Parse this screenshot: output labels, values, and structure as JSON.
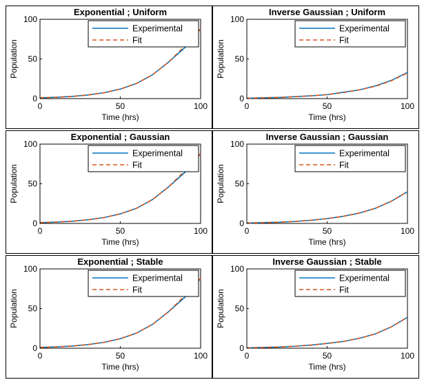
{
  "colors": {
    "experimental": "#0072BD",
    "fit": "#D95319",
    "axis": "#000000",
    "frame": "#000000"
  },
  "chart_data": [
    {
      "type": "line",
      "title": "Exponential ; Uniform",
      "xlabel": "Time (hrs)",
      "ylabel": "Population",
      "xlim": [
        0,
        100
      ],
      "ylim": [
        0,
        100
      ],
      "xticks": [
        "0",
        "50",
        "100"
      ],
      "yticks": [
        "0",
        "50",
        "100"
      ],
      "legend": {
        "position": "top-right",
        "entries": [
          "Experimental",
          "Fit"
        ]
      },
      "x": [
        0,
        10,
        20,
        30,
        40,
        50,
        60,
        70,
        80,
        90,
        100
      ],
      "series": [
        {
          "name": "Experimental",
          "style": "solid",
          "values": [
            1,
            1.7,
            2.8,
            4.6,
            7.5,
            12,
            19,
            30,
            46,
            64,
            88
          ]
        },
        {
          "name": "Fit",
          "style": "dashed",
          "values": [
            1,
            1.6,
            2.7,
            4.5,
            7.4,
            12,
            19,
            30,
            46,
            66,
            88
          ]
        }
      ]
    },
    {
      "type": "line",
      "title": "Inverse Gaussian ; Uniform",
      "xlabel": "Time (hrs)",
      "ylabel": "Population",
      "xlim": [
        0,
        100
      ],
      "ylim": [
        0,
        100
      ],
      "xticks": [
        "0",
        "50",
        "100"
      ],
      "yticks": [
        "0",
        "50",
        "100"
      ],
      "legend": {
        "position": "top-right",
        "entries": [
          "Experimental",
          "Fit"
        ]
      },
      "x": [
        0,
        10,
        20,
        30,
        40,
        50,
        60,
        70,
        80,
        90,
        100
      ],
      "series": [
        {
          "name": "Experimental",
          "style": "solid",
          "values": [
            0.5,
            1,
            1.5,
            2.5,
            3.5,
            5,
            8,
            11,
            16,
            23,
            33
          ]
        },
        {
          "name": "Fit",
          "style": "dashed",
          "values": [
            0.5,
            1,
            1.5,
            2.5,
            3.5,
            5,
            7.5,
            11,
            15.5,
            22.5,
            32.5
          ]
        }
      ]
    },
    {
      "type": "line",
      "title": "Exponential ; Gaussian",
      "xlabel": "Time (hrs)",
      "ylabel": "Population",
      "xlim": [
        0,
        100
      ],
      "ylim": [
        0,
        100
      ],
      "xticks": [
        "0",
        "50",
        "100"
      ],
      "yticks": [
        "0",
        "50",
        "100"
      ],
      "legend": {
        "position": "top-right",
        "entries": [
          "Experimental",
          "Fit"
        ]
      },
      "x": [
        0,
        10,
        20,
        30,
        40,
        50,
        60,
        70,
        80,
        90,
        100
      ],
      "series": [
        {
          "name": "Experimental",
          "style": "solid",
          "values": [
            1,
            1.7,
            2.8,
            4.6,
            7.5,
            12,
            19,
            30,
            46,
            64,
            88
          ]
        },
        {
          "name": "Fit",
          "style": "dashed",
          "values": [
            1,
            1.6,
            2.7,
            4.5,
            7.4,
            12,
            19,
            30,
            46,
            66,
            88
          ]
        }
      ]
    },
    {
      "type": "line",
      "title": "Inverse Gaussian ; Gaussian",
      "xlabel": "Time (hrs)",
      "ylabel": "Population",
      "xlim": [
        0,
        100
      ],
      "ylim": [
        0,
        100
      ],
      "xticks": [
        "0",
        "50",
        "100"
      ],
      "yticks": [
        "0",
        "50",
        "100"
      ],
      "legend": {
        "position": "top-right",
        "entries": [
          "Experimental",
          "Fit"
        ]
      },
      "x": [
        0,
        10,
        20,
        30,
        40,
        50,
        60,
        70,
        80,
        90,
        100
      ],
      "series": [
        {
          "name": "Experimental",
          "style": "solid",
          "values": [
            0.5,
            1,
            1.5,
            2.5,
            4,
            6,
            9,
            13,
            19,
            28,
            40
          ]
        },
        {
          "name": "Fit",
          "style": "dashed",
          "values": [
            0.5,
            1,
            1.5,
            2.5,
            4,
            6,
            9,
            13,
            19,
            28,
            40
          ]
        }
      ]
    },
    {
      "type": "line",
      "title": "Exponential ; Stable",
      "xlabel": "Time (hrs)",
      "ylabel": "Population",
      "xlim": [
        0,
        100
      ],
      "ylim": [
        0,
        100
      ],
      "xticks": [
        "0",
        "50",
        "100"
      ],
      "yticks": [
        "0",
        "50",
        "100"
      ],
      "legend": {
        "position": "top-right",
        "entries": [
          "Experimental",
          "Fit"
        ]
      },
      "x": [
        0,
        10,
        20,
        30,
        40,
        50,
        60,
        70,
        80,
        90,
        100
      ],
      "series": [
        {
          "name": "Experimental",
          "style": "solid",
          "values": [
            1,
            1.7,
            2.8,
            4.6,
            7.5,
            12,
            19,
            30,
            46,
            64,
            88
          ]
        },
        {
          "name": "Fit",
          "style": "dashed",
          "values": [
            1,
            1.6,
            2.7,
            4.5,
            7.4,
            12,
            19,
            30,
            46,
            66,
            88
          ]
        }
      ]
    },
    {
      "type": "line",
      "title": "Inverse Gaussian ; Stable",
      "xlabel": "Time (hrs)",
      "ylabel": "Population",
      "xlim": [
        0,
        100
      ],
      "ylim": [
        0,
        100
      ],
      "xticks": [
        "0",
        "50",
        "100"
      ],
      "yticks": [
        "0",
        "50",
        "100"
      ],
      "legend": {
        "position": "top-right",
        "entries": [
          "Experimental",
          "Fit"
        ]
      },
      "x": [
        0,
        10,
        20,
        30,
        40,
        50,
        60,
        70,
        80,
        90,
        100
      ],
      "series": [
        {
          "name": "Experimental",
          "style": "solid",
          "values": [
            0.5,
            1,
            1.5,
            2.5,
            4,
            6,
            8.5,
            12.5,
            18,
            27,
            39
          ]
        },
        {
          "name": "Fit",
          "style": "dashed",
          "values": [
            0.5,
            1,
            1.5,
            2.5,
            4,
            6,
            8.5,
            12.5,
            18,
            27,
            39
          ]
        }
      ]
    }
  ]
}
